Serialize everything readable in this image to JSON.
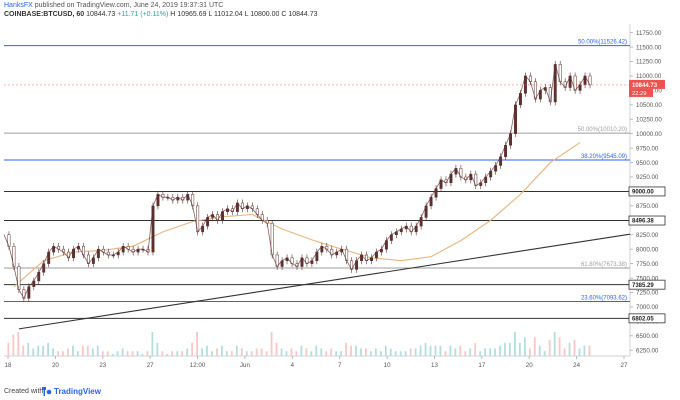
{
  "header": {
    "author": "HanksFX",
    "published": "published on TradingView.com, June 24, 2019 19:37:31 UTC",
    "symbol": "COINBASE:BTCUSD, 60",
    "ohlc_prefix": "10844.73",
    "change": "+11.71 (+0.11%)",
    "ohlc": "H 10965.69  L 11012.04  L 10800.00  C 10844.73"
  },
  "footer": {
    "created": "Created with",
    "brand": "TradingView"
  },
  "colors": {
    "up": "#26a69a",
    "down": "#ef5350",
    "candle": "#5d2f2f",
    "level_blue": "#2962ff",
    "level_gray": "#9e9e9e",
    "level_dark": "#333333",
    "ma": "#e9b57a",
    "trend": "#333333",
    "price": "#ef5350"
  },
  "chart_data": {
    "type": "line",
    "title": "COINBASE:BTCUSD, 60",
    "y_ticks": [
      11750,
      11500,
      11250,
      11000,
      10750,
      10500,
      10250,
      10000,
      9750,
      9500,
      9250,
      9000,
      8750,
      8500,
      8250,
      8000,
      7750,
      7500,
      7250,
      7000,
      6750,
      6500,
      6250
    ],
    "ylim": [
      6150,
      11900
    ],
    "x_ticks": [
      "18",
      "20",
      "23",
      "27",
      "12:00",
      "Jun",
      "4",
      "7",
      "10",
      "13",
      "17",
      "20",
      "24",
      "27"
    ],
    "price_series": {
      "name": "BTCUSD",
      "x": [
        0,
        1,
        2,
        3,
        4,
        5,
        6,
        7,
        8,
        9,
        10,
        11,
        12,
        13,
        14,
        15,
        16,
        17,
        18,
        19,
        20,
        21,
        22,
        23,
        24,
        25,
        26,
        27,
        28,
        29,
        30,
        31,
        32,
        33,
        34,
        35,
        36,
        37,
        38,
        39,
        40,
        41,
        42,
        43,
        44,
        45,
        46,
        47,
        48,
        49,
        50,
        51,
        52,
        53,
        54,
        55,
        56,
        57,
        58,
        59,
        60,
        61,
        62,
        63,
        64,
        65,
        66,
        67,
        68,
        69,
        70,
        71,
        72,
        73,
        74,
        75,
        76,
        77,
        78,
        79,
        80,
        81,
        82,
        83,
        84,
        85,
        86,
        87,
        88,
        89,
        90,
        91,
        92,
        93,
        94,
        95,
        96,
        97,
        98,
        99,
        100,
        101,
        102,
        103,
        104,
        105,
        106,
        107,
        108,
        109,
        110,
        111,
        112,
        113,
        114,
        115,
        116,
        117,
        118
      ],
      "y": [
        8250,
        8050,
        7700,
        7300,
        7150,
        7350,
        7450,
        7600,
        7750,
        7950,
        8050,
        8000,
        7950,
        7850,
        8000,
        8050,
        7900,
        7750,
        7850,
        8000,
        7950,
        7900,
        7900,
        7950,
        8050,
        8000,
        7950,
        8000,
        8000,
        7950,
        8750,
        8950,
        8900,
        8900,
        8850,
        8900,
        8850,
        8950,
        8750,
        8300,
        8400,
        8550,
        8600,
        8500,
        8650,
        8700,
        8650,
        8800,
        8700,
        8750,
        8700,
        8600,
        8500,
        8450,
        7900,
        7700,
        7800,
        7850,
        7750,
        7700,
        7850,
        7750,
        7800,
        7950,
        8050,
        8000,
        7900,
        7950,
        8000,
        7800,
        7650,
        7800,
        7900,
        7800,
        7850,
        7950,
        8000,
        8150,
        8250,
        8300,
        8350,
        8400,
        8300,
        8400,
        8550,
        8750,
        8900,
        9050,
        9200,
        9150,
        9300,
        9400,
        9250,
        9200,
        9300,
        9100,
        9150,
        9250,
        9350,
        9450,
        9600,
        9800,
        10000,
        10500,
        10700,
        11000,
        10900,
        10600,
        10750,
        10800,
        10550,
        11200,
        10900,
        10800,
        11000,
        10750,
        10850,
        11000,
        10844.73
      ]
    },
    "moving_average": {
      "x": [
        2,
        8,
        14,
        20,
        26,
        32,
        38,
        44,
        50,
        56,
        62,
        68,
        74,
        80,
        86,
        92,
        98,
        104,
        110,
        116
      ],
      "y": [
        7350,
        7800,
        7950,
        7980,
        8050,
        8300,
        8480,
        8560,
        8600,
        8350,
        8160,
        8000,
        7850,
        7800,
        7870,
        8150,
        8500,
        8950,
        9500,
        9850
      ]
    },
    "trendline": {
      "x": [
        3,
        118
      ],
      "y": [
        6620,
        8260
      ]
    },
    "levels": [
      {
        "value": 11526.42,
        "label": "50.00%(11526.42)",
        "color": "#2962ff",
        "box": false
      },
      {
        "value": 10010.2,
        "label": "50.00%(10010.20)",
        "color": "#9e9e9e",
        "box": false
      },
      {
        "value": 9545.09,
        "label": "38.20%(9545.09)",
        "color": "#2962ff",
        "box": false
      },
      {
        "value": 9000.0,
        "label": "9000.00",
        "color": "#333333",
        "box": true
      },
      {
        "value": 8496.38,
        "label": "8496.38",
        "color": "#333333",
        "box": true
      },
      {
        "value": 7673.38,
        "label": "61.80%(7673.38)",
        "color": "#9e9e9e",
        "box": false
      },
      {
        "value": 7385.29,
        "label": "7385.29",
        "color": "#333333",
        "box": true
      },
      {
        "value": 7093.62,
        "label": "23.60%(7093.62)",
        "color": "#2962ff",
        "box": false
      },
      {
        "value": 6802.05,
        "label": "6802.05",
        "color": "#333333",
        "box": true
      }
    ],
    "price_label": "10844.73",
    "time_label": "22:29"
  }
}
